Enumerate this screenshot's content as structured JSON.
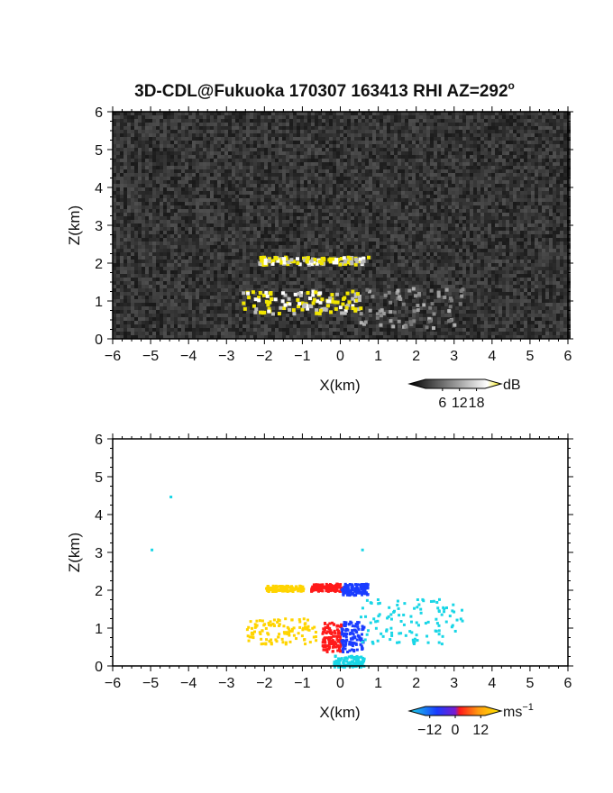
{
  "title": "3D-CDL@Fukuoka 170307 163413 RHI AZ=292",
  "title_superscript": "o",
  "chart_data": [
    {
      "type": "heatmap",
      "name": "reflectivity",
      "xlabel": "X(km)",
      "ylabel": "Z(km)",
      "xlim": [
        -6,
        6
      ],
      "ylim": [
        0,
        6
      ],
      "xticks": [
        -6,
        -5,
        -4,
        -3,
        -2,
        -1,
        0,
        1,
        2,
        3,
        4,
        5,
        6
      ],
      "yticks": [
        0,
        1,
        2,
        3,
        4,
        5,
        6
      ],
      "background": "noisy dark gray",
      "colorbar": {
        "unit": "dB",
        "ticks": [
          "6",
          "12",
          "18"
        ],
        "range": [
          0,
          21
        ],
        "colors": [
          "#000000",
          "#ffffff",
          "#f2e600"
        ]
      },
      "features": [
        {
          "x": [
            -2.2,
            0.8
          ],
          "z": [
            2.0,
            2.2
          ],
          "level": "strong",
          "desc": "upper echo layer"
        },
        {
          "x": [
            -2.6,
            0.5
          ],
          "z": [
            0.7,
            1.3
          ],
          "level": "strong",
          "desc": "lower echo layer"
        },
        {
          "x": [
            0.5,
            3.2
          ],
          "z": [
            0.3,
            1.4
          ],
          "level": "weak",
          "desc": "weak echo"
        }
      ]
    },
    {
      "type": "heatmap",
      "name": "doppler_velocity",
      "xlabel": "X(km)",
      "ylabel": "Z(km)",
      "xlim": [
        -6,
        6
      ],
      "ylim": [
        0,
        6
      ],
      "xticks": [
        -6,
        -5,
        -4,
        -3,
        -2,
        -1,
        0,
        1,
        2,
        3,
        4,
        5,
        6
      ],
      "yticks": [
        0,
        1,
        2,
        3,
        4,
        5,
        6
      ],
      "colorbar": {
        "unit": "ms",
        "unit_superscript": "−1",
        "ticks": [
          "−12",
          "0",
          "12"
        ],
        "range": [
          -14,
          14
        ],
        "colors": [
          "#19d6e6",
          "#1a3cff",
          "#ff1a1a",
          "#ff9a10",
          "#ffeb00"
        ]
      },
      "features": [
        {
          "x": [
            -2.0,
            -1.0
          ],
          "z": [
            2.0,
            2.15
          ],
          "v": 12
        },
        {
          "x": [
            -0.8,
            0.0
          ],
          "z": [
            2.0,
            2.2
          ],
          "v": 4
        },
        {
          "x": [
            0.0,
            0.7
          ],
          "z": [
            1.9,
            2.2
          ],
          "v": -8
        },
        {
          "x": [
            -2.5,
            -0.6
          ],
          "z": [
            0.6,
            1.3
          ],
          "v": 13
        },
        {
          "x": [
            -0.5,
            0.0
          ],
          "z": [
            0.4,
            1.2
          ],
          "v": 5
        },
        {
          "x": [
            0.0,
            0.6
          ],
          "z": [
            0.4,
            1.2
          ],
          "v": -8
        },
        {
          "x": [
            0.5,
            3.2
          ],
          "z": [
            0.6,
            1.8
          ],
          "v": -13
        },
        {
          "x": [
            -0.2,
            0.6
          ],
          "z": [
            0.0,
            0.3
          ],
          "v": -13
        },
        {
          "x": [
            -4.5,
            -4.5
          ],
          "z": [
            4.5,
            4.5
          ],
          "v": -13
        },
        {
          "x": [
            -5.0,
            -5.0
          ],
          "z": [
            3.1,
            3.1
          ],
          "v": -13
        },
        {
          "x": [
            0.55,
            0.55
          ],
          "z": [
            3.1,
            3.1
          ],
          "v": -13
        }
      ]
    }
  ]
}
